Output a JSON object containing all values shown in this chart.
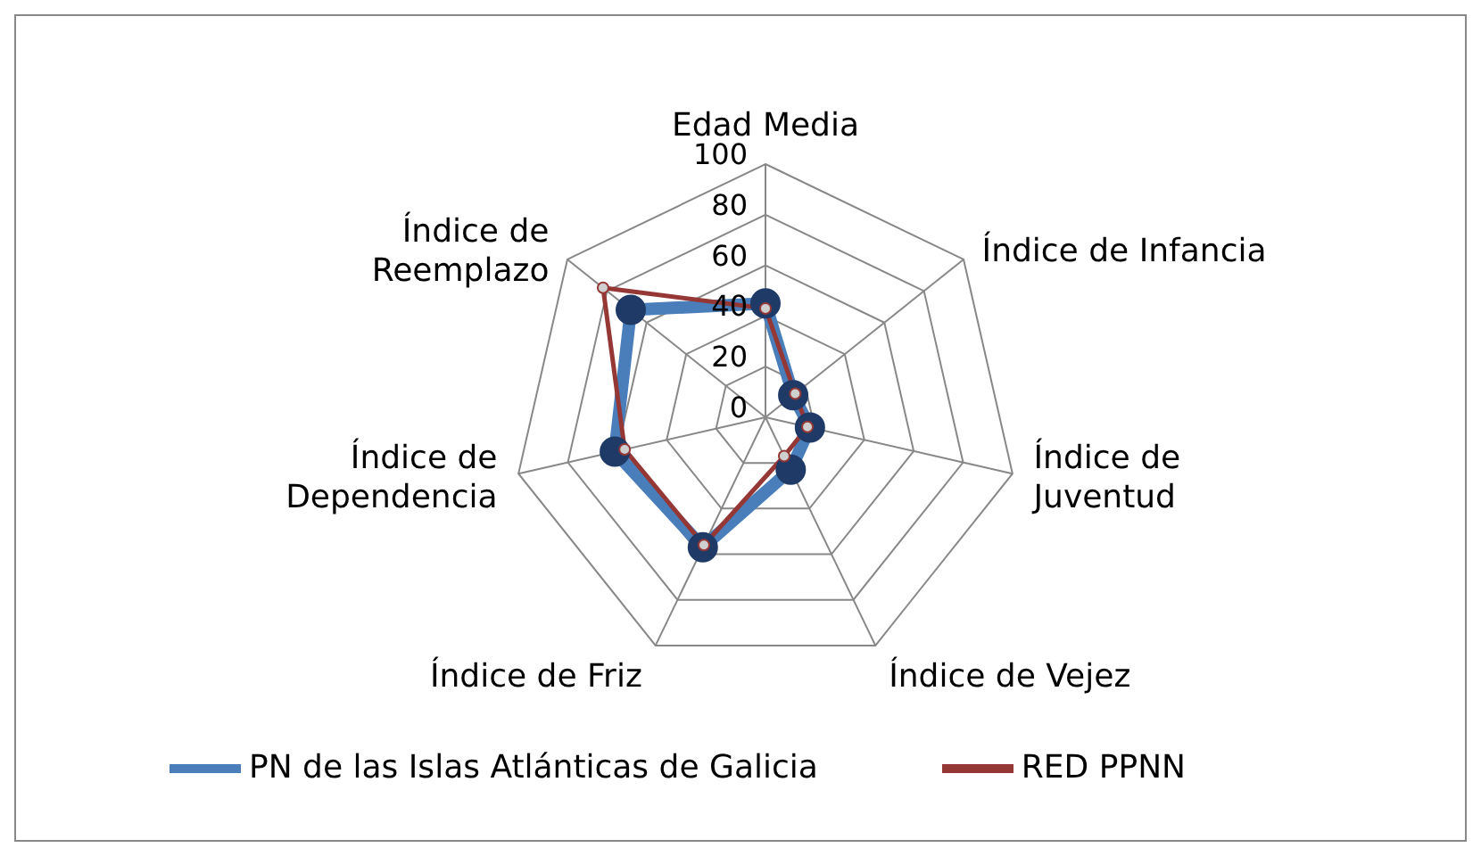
{
  "chart_data": {
    "type": "radar",
    "categories": [
      "Edad Media",
      "Índice de Infancia",
      "Índice de Juventud",
      "Índice de Vejez",
      "Índice de Friz",
      "Índice de Dependencia",
      "Índice de Reemplazo"
    ],
    "series": [
      {
        "name": "PN de las Islas Atlánticas de Galicia",
        "color": "#4a7ebb",
        "values": [
          45,
          14,
          18,
          23,
          57,
          61,
          68
        ]
      },
      {
        "name": "RED PPNN",
        "color": "#953735",
        "values": [
          43,
          15,
          17,
          17,
          56,
          57,
          82
        ]
      }
    ],
    "ylim": [
      0,
      100
    ],
    "yticks": [
      0,
      20,
      40,
      60,
      80,
      100
    ],
    "grid": true,
    "legend": "bottom",
    "marker": "circle"
  }
}
